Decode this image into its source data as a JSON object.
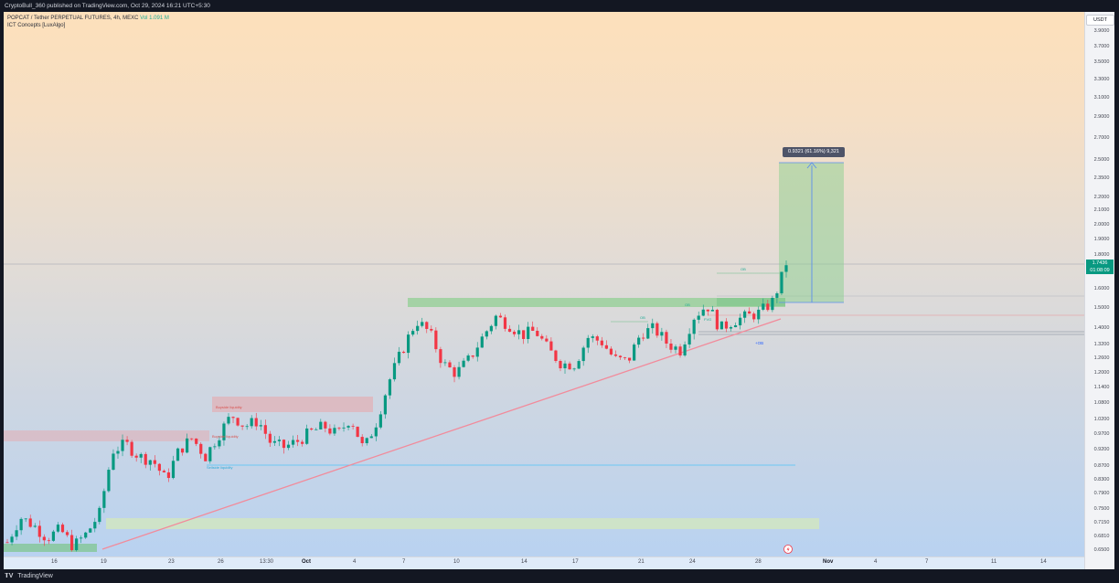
{
  "header": {
    "publish_text": "CryptoBull_360 published on TradingView.com, Oct 29, 2024 16:21 UTC+5:30"
  },
  "legend": {
    "symbol_line": "POPCAT / Tether PERPETUAL FUTURES, 4h, MEXC",
    "volume": "Vol 1.091 M",
    "indicator": "ICT Concepts [LuxAlgo]"
  },
  "currency": "USDT",
  "last_price": {
    "value": "1.7436",
    "countdown": "01:08:09"
  },
  "measure": {
    "label": "0.9321 (61.16%) 9,321"
  },
  "annotations": {
    "ob_labels": [
      "OB",
      "OB",
      "OB",
      "FVG"
    ],
    "buyside_high": "Buyside liquidity",
    "buyside_low": "Buyside liquidity",
    "sellside": "Sellside liquidity",
    "plus_ob": "+OB"
  },
  "footer": {
    "brand": "TradingView"
  },
  "colors": {
    "up": "#089981",
    "down": "#f23645",
    "trend": "#f28b9b",
    "zone_green": "#8bcf8f",
    "zone_red": "#e6a9ad"
  },
  "chart_data": {
    "type": "candlestick",
    "title": "POPCAT / Tether PERPETUAL FUTURES, 4h, MEXC",
    "y_ticks": [
      "3.9000",
      "3.7000",
      "3.5000",
      "3.3000",
      "3.1000",
      "2.9000",
      "2.7000",
      "2.5000",
      "2.3500",
      "2.2000",
      "2.1000",
      "2.0000",
      "1.9000",
      "1.8000",
      "1.7000",
      "1.6000",
      "1.5000",
      "1.4000",
      "1.3200",
      "1.2600",
      "1.2000",
      "1.1400",
      "1.0800",
      "1.0200",
      "0.9700",
      "0.9200",
      "0.8700",
      "0.8300",
      "0.7900",
      "0.7500",
      "0.7150",
      "0.6810",
      "0.6500"
    ],
    "x_ticks": [
      "16",
      "19",
      "23",
      "26",
      "13:30",
      "Oct",
      "4",
      "7",
      "10",
      "14",
      "17",
      "21",
      "24",
      "28",
      "Nov",
      "4",
      "7",
      "11",
      "14"
    ],
    "ylim": [
      0.65,
      3.95
    ],
    "y_scale": "log",
    "close_series": [
      0.67,
      0.73,
      0.71,
      0.68,
      0.7,
      0.66,
      0.69,
      0.74,
      0.92,
      0.94,
      0.9,
      0.89,
      0.83,
      0.92,
      0.96,
      0.9,
      0.97,
      1.04,
      1.0,
      1.02,
      0.94,
      0.93,
      0.95,
      0.98,
      1.0,
      0.97,
      1.03,
      0.92,
      1.02,
      1.18,
      1.31,
      1.44,
      1.38,
      1.24,
      1.2,
      1.26,
      1.36,
      1.46,
      1.42,
      1.37,
      1.39,
      1.3,
      1.24,
      1.24,
      1.36,
      1.34,
      1.26,
      1.25,
      1.38,
      1.4,
      1.33,
      1.3,
      1.46,
      1.52,
      1.4,
      1.44,
      1.46,
      1.48,
      1.54,
      1.74
    ],
    "last": 1.7436
  }
}
